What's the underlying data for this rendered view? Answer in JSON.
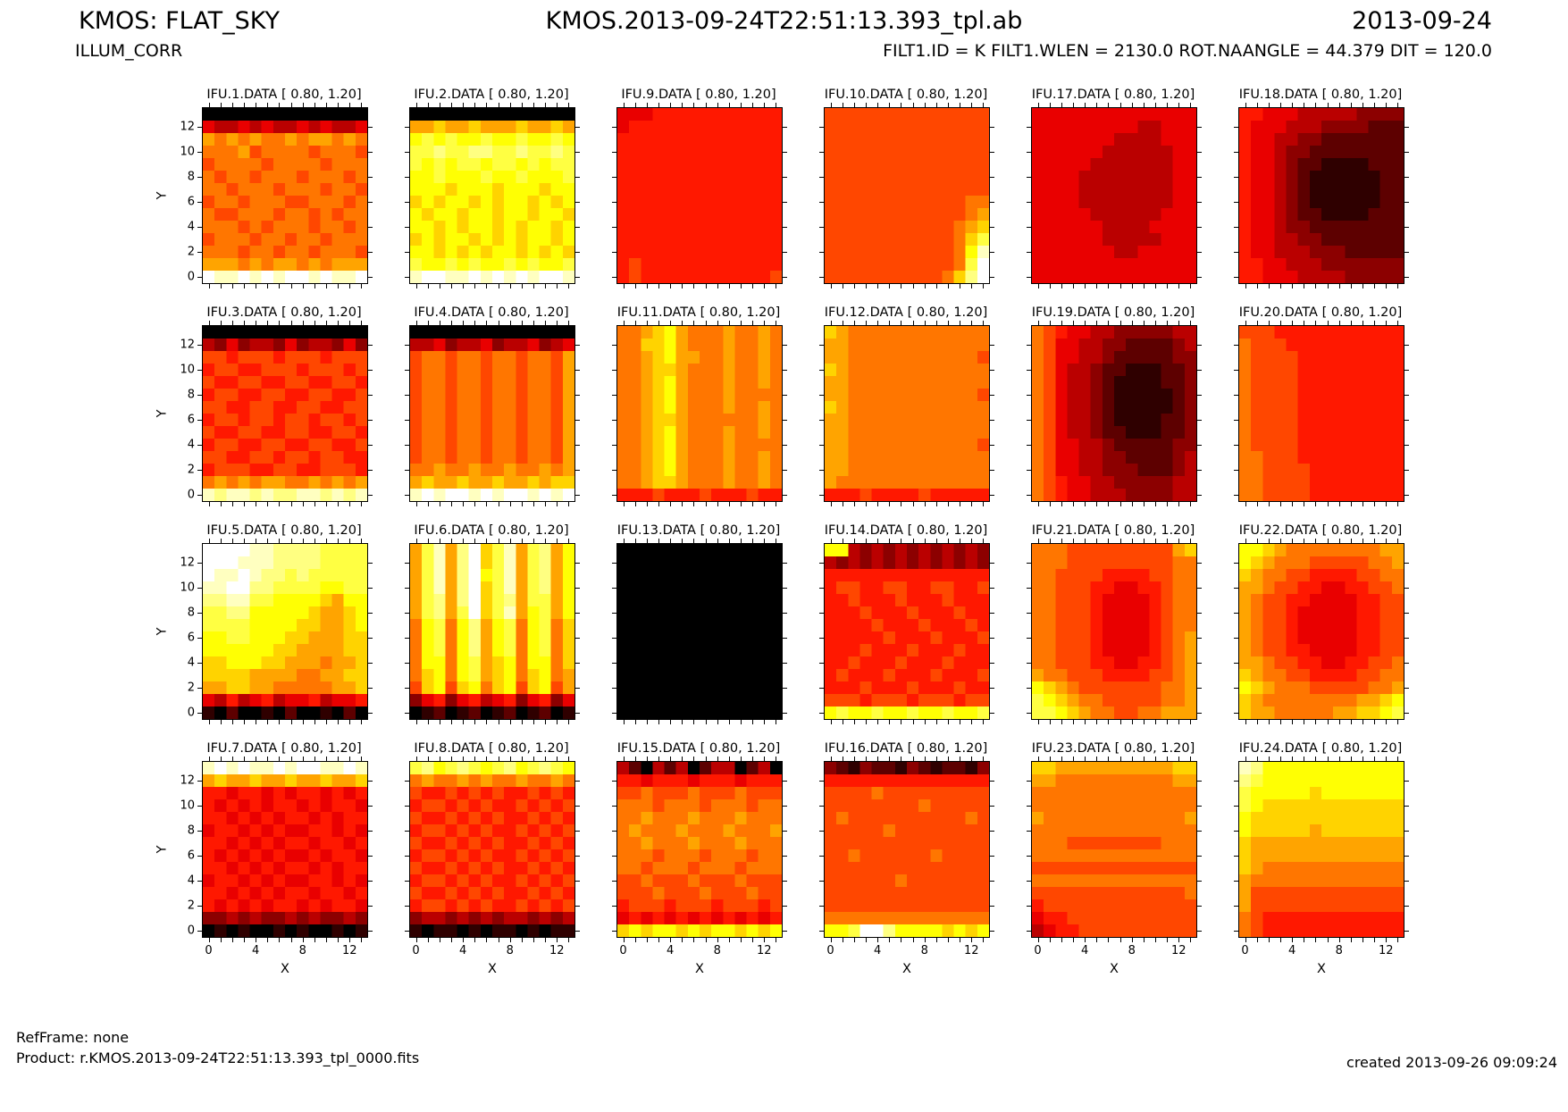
{
  "header": {
    "title_left": "KMOS: FLAT_SKY",
    "subtitle_left": "ILLUM_CORR",
    "title_center": "KMOS.2013-09-24T22:51:13.393_tpl.ab",
    "date_right": "2013-09-24",
    "subtitle_right": "FILT1.ID = K FILT1.WLEN = 2130.0 ROT.NAANGLE = 44.379 DIT = 120.0"
  },
  "footer": {
    "refframe": "RefFrame: none",
    "product": "Product: r.KMOS.2013-09-24T22:51:13.393_tpl_0000.fits",
    "created": "created 2013-09-26 09:09:24"
  },
  "chart_data": {
    "type": "heatmap",
    "colormap": "hot",
    "value_range": [
      0.8,
      1.2
    ],
    "grid_shape": [
      14,
      14
    ],
    "x_range": [
      -0.5,
      13.5
    ],
    "y_range": [
      -0.5,
      13.5
    ],
    "encoding": "Each panel row is a 14-char hex string, top row (y=13) first; digit d maps to value = 0.8 + 0.4*(d/15) rendered on the hot colormap",
    "xlabel": "X",
    "ylabel": "Y",
    "x_ticks": [
      0,
      4,
      8,
      12
    ],
    "y_ticks": [
      0,
      2,
      4,
      6,
      8,
      10,
      12
    ],
    "layout_rows": 4,
    "layout_cols": 6,
    "panels": [
      {
        "title": "IFU.1.DATA [ 0.80, 1.20]",
        "rows": [
          "00000000000000",
          "54454544545445",
          "98989889899898",
          "88897888878887",
          "78888788887888",
          "87887888788878",
          "88788878887887",
          "78878887788878",
          "87788878878788",
          "88878788878878",
          "78887887887888",
          "88878878878887",
          "99989899898999",
          "feefefeffefeef"
        ]
      },
      {
        "title": "IFU.2.DATA [ 0.80, 1.20]",
        "rows": [
          "00000000000000",
          "99a99a999a99a9",
          "bcbcbbcbbcbbcb",
          "ccdccddccdccdc",
          "cbcbccbccbcbcc",
          "bbcbbbcbbcbbbc",
          "bbbabbbabbbabb",
          "ababbababbabab",
          "babbabbabbabba",
          "bbababbababbab",
          "ababbabababbab",
          "bbabababbababa",
          "cbbcbcbbcbcbbc",
          "effeefefefeffe"
        ]
      },
      {
        "title": "IFU.9.DATA [ 0.80, 1.20]",
        "rows": [
          "55566666666666",
          "56666666666666",
          "66666666666666",
          "66666666666666",
          "66666666666666",
          "66666666666666",
          "66666666666666",
          "66666666666666",
          "66666666666666",
          "66666666666666",
          "66666666666666",
          "66666666666666",
          "67666666666666",
          "67666666666667"
        ]
      },
      {
        "title": "IFU.10.DATA [ 0.80, 1.20]",
        "rows": [
          "77777777777777",
          "77777777777777",
          "77777777777777",
          "77777777777777",
          "77777777777777",
          "77777777777777",
          "77777777777777",
          "77777777777788",
          "77777777777789",
          "7777777777789a",
          "777777777778ac",
          "777777777778be",
          "777777777778cf",
          "77777777778adf"
        ]
      },
      {
        "title": "IFU.17.DATA [ 0.80, 1.20]",
        "rows": [
          "55555555555555",
          "55555555544555",
          "55555554444555",
          "55555544444455",
          "55555444444455",
          "55554444444455",
          "55554444444455",
          "55554444444455",
          "55555444444555",
          "55555544445555",
          "55555544444555",
          "55555554455555",
          "55555555555555",
          "55555555555555"
        ]
      },
      {
        "title": "IFU.18.DATA [ 0.80, 1.20]",
        "rows": [
          "66555444443333",
          "65554443333222",
          "65544332222222",
          "65543322222222",
          "65543221111222",
          "65543211111122",
          "65543211111122",
          "65543211111122",
          "65543221111222",
          "65543322222222",
          "65544332222222",
          "65544433322222",
          "66554443333333",
          "66555444433333"
        ]
      },
      {
        "title": "IFU.3.DATA [ 0.80, 1.20]",
        "rows": [
          "00000000000000",
          "43534435344353",
          "77677767776777",
          "67766777677767",
          "76677667766776",
          "67766776677667",
          "77667766776677",
          "67767767767767",
          "76677667766776",
          "67766776677667",
          "77667767767766",
          "67776677667776",
          "89898998898989",
          "edeededdeedede"
        ]
      },
      {
        "title": "IFU.4.DATA [ 0.80, 1.20]",
        "rows": [
          "00000000000000",
          "44534453445345",
          "78878878878879",
          "78878878878879",
          "78878878878879",
          "78878878878879",
          "78878878878879",
          "78878878878879",
          "78878878878879",
          "78878878878879",
          "78878878878879",
          "88988988988989",
          "9a99a99a99a9aa",
          "efeffefeffefef"
        ]
      },
      {
        "title": "IFU.11.DATA [ 0.80, 1.20]",
        "rows": [
          "889ab988898898",
          "88aab988898898",
          "889ab998898898",
          "889aa988898898",
          "889ab988898898",
          "889ab988898888",
          "889ab988898898",
          "889aa988888898",
          "889ab988898898",
          "889ab988898888",
          "889ab988898898",
          "889ab988898898",
          "889aa988898898",
          "66676667666766"
        ]
      },
      {
        "title": "IFU.12.DATA [ 0.80, 1.20]",
        "rows": [
          "a9888888888888",
          "99888888888888",
          "99888888888887",
          "a9888888888888",
          "99888888888888",
          "99888888888887",
          "a9888888888888",
          "99888888888888",
          "99888888888888",
          "99888888888887",
          "99888888888888",
          "99888888888888",
          "98888888888888",
          "66676666766666"
        ]
      },
      {
        "title": "IFU.19.DATA [ 0.80, 1.20]",
        "rows": [
          "87655443333344",
          "87554433222234",
          "87554432222233",
          "87544322111223",
          "87544321111223",
          "87544321111123",
          "87544321111123",
          "87544321111223",
          "87544322111223",
          "87554432222233",
          "87554433222234",
          "87554433322234",
          "87655443333344",
          "87655444333344"
        ]
      },
      {
        "title": "IFU.20.DATA [ 0.80, 1.20]",
        "rows": [
          "77766666666666",
          "87776666666666",
          "87777666666666",
          "87777666666666",
          "87777666666666",
          "87777666666666",
          "87777666666666",
          "87777666666666",
          "87777666666666",
          "87777666666666",
          "88777666666666",
          "88777766666666",
          "88777766666666",
          "88777766666666"
        ]
      },
      {
        "title": "IFU.5.DATA [ 0.80, 1.20]",
        "rows": [
          "ffffeeddddcccc",
          "fffeeeddddcccc",
          "feefeddcdccccc",
          "eeffddccccbbcc",
          "ddeeccbbbba9bb",
          "ccddbbbbba99ab",
          "ccccbbbbaa99ab",
          "bbccbbbaa999aa",
          "bbbbbbaa9999aa",
          "aabbbaa999899a",
          "aaaa99998899aa",
          "99aa998888899a",
          "54645645564556",
          "10200102001020"
        ]
      },
      {
        "title": "IFU.6.DATA [ 0.80, 1.20]",
        "rows": [
          "9ce9dface9cd9b",
          "9ce9dface9cd9b",
          "9ce9dfbce9cd9b",
          "9ce9dface9cd9b",
          "9cd9dfacd9cc9b",
          "9cd9cface9bc9b",
          "8bc8bd9bc8bc8a",
          "8bc8bd9bc8bc8a",
          "8bc8bd9bc8bc8a",
          "8bb8bc9ab8bb8a",
          "8ab8bc9ab8ab89",
          "7ab7ab8ab7ab79",
          "35635645635635",
          "01201201201201"
        ]
      },
      {
        "title": "IFU.13.DATA [ 0.80, 1.20]",
        "rows": [
          "00000000000000",
          "00000000000000",
          "00000000000000",
          "00000000000000",
          "00000000000000",
          "00000000000000",
          "00000000000000",
          "00000000000000",
          "00000000000000",
          "00000000000000",
          "00000000000000",
          "00000000000000",
          "00000000000000",
          "00000000000000"
        ]
      },
      {
        "title": "IFU.14.DATA [ 0.80, 1.20]",
        "rows": [
          "bb434343434343",
          "43434343434343",
          "66666666666666",
          "67766776677667",
          "66766676667666",
          "66676667666766",
          "66667666766676",
          "66666766676667",
          "66676667666766",
          "66766676667666",
          "67666766676667",
          "66676667666766",
          "77767776777677",
          "bcbbcbbcbbcbbc"
        ]
      },
      {
        "title": "IFU.21.DATA [ 0.80, 1.20]",
        "rows": [
          "8887777777779a",
          "88877777777788",
          "88777766667788",
          "88777665566788",
          "88777655556788",
          "88777655556788",
          "88777655556788",
          "88777655556789",
          "88777655556789",
          "88777665566789",
          "98877766667789",
          "ba987777777889",
          "cba98877777889",
          "ccba9887788999"
        ]
      },
      {
        "title": "IFU.22.DATA [ 0.80, 1.20]",
        "rows": [
          "bba98888888899",
          "ba988877777889",
          "a9887766667788",
          "99877665566778",
          "98776655556677",
          "98776555556677",
          "98776555556677",
          "98776555556677",
          "98776655556677",
          "99877665566778",
          "a9887766667788",
          "ba988877777889",
          "a98888888899ab",
          "a998888899aabc"
        ]
      },
      {
        "title": "IFU.7.DATA [ 0.80, 1.20]",
        "rows": [
          "efefeefeffeefe",
          "9a99a99a99a99a",
          "66566565665656",
          "65656566565665",
          "66565656656566",
          "56656565566565",
          "66565656656656",
          "65656565565665",
          "66565656656566",
          "56656565566565",
          "66565656656656",
          "65656566565665",
          "33434334343343",
          "01010010100101"
        ]
      },
      {
        "title": "IFU.8.DATA [ 0.80, 1.20]",
        "rows": [
          "cdbcdcbcdbcdcb",
          "89889898898898",
          "76676767667676",
          "67767676676767",
          "76676767667676",
          "67767676676767",
          "76676767667676",
          "67767676676767",
          "76676767667676",
          "67767676676767",
          "76676767667676",
          "67767676676767",
          "34434343443434",
          "10110101101011"
        ]
      },
      {
        "title": "IFU.15.DATA [ 0.80, 1.20]",
        "rows": [
          "42042402440240",
          "66566656665666",
          "77877787778777",
          "88878887888788",
          "88988898889888",
          "89888988898889",
          "88988898889888",
          "88878887888788",
          "88788878887888",
          "77877787778777",
          "77787778777877",
          "67776777677767",
          "56565656565656",
          "ababbababbabab"
        ]
      },
      {
        "title": "IFU.16.DATA [ 0.80, 1.20]",
        "rows": [
          "32132213212213",
          "66666666666666",
          "77778777777777",
          "77777777877777",
          "78777777777787",
          "77777877777777",
          "77777777777777",
          "77877777787777",
          "77777777777777",
          "77777787777777",
          "77777777777777",
          "77777777777777",
          "88888888888888",
          "bbcffdbbbbabab"
        ]
      },
      {
        "title": "IFU.23.DATA [ 0.80, 1.20]",
        "rows": [
          "aa9999999999aa",
          "99888888888899",
          "88888888888888",
          "88888888888888",
          "98888888888889",
          "88888888888888",
          "88877777777888",
          "88888888888888",
          "77777777777777",
          "88888888888888",
          "77777777777778",
          "67777777777777",
          "56677777777777",
          "45667777777777"
        ]
      },
      {
        "title": "IFU.24.DATA [ 0.80, 1.20]",
        "rows": [
          "edbbbbbbbbbbbb",
          "dcbbbbbbbbbbbb",
          "cbbbbbabbbbbbb",
          "cbaaaaaaaaaaaa",
          "baaaaaaaaaaaaa",
          "baaaaa9aaaaaaa",
          "a9999999999999",
          "a9999999999999",
          "a9888888888888",
          "98888888888888",
          "97777777777777",
          "97777777777777",
          "87666666666666",
          "87666666666666"
        ]
      }
    ]
  }
}
